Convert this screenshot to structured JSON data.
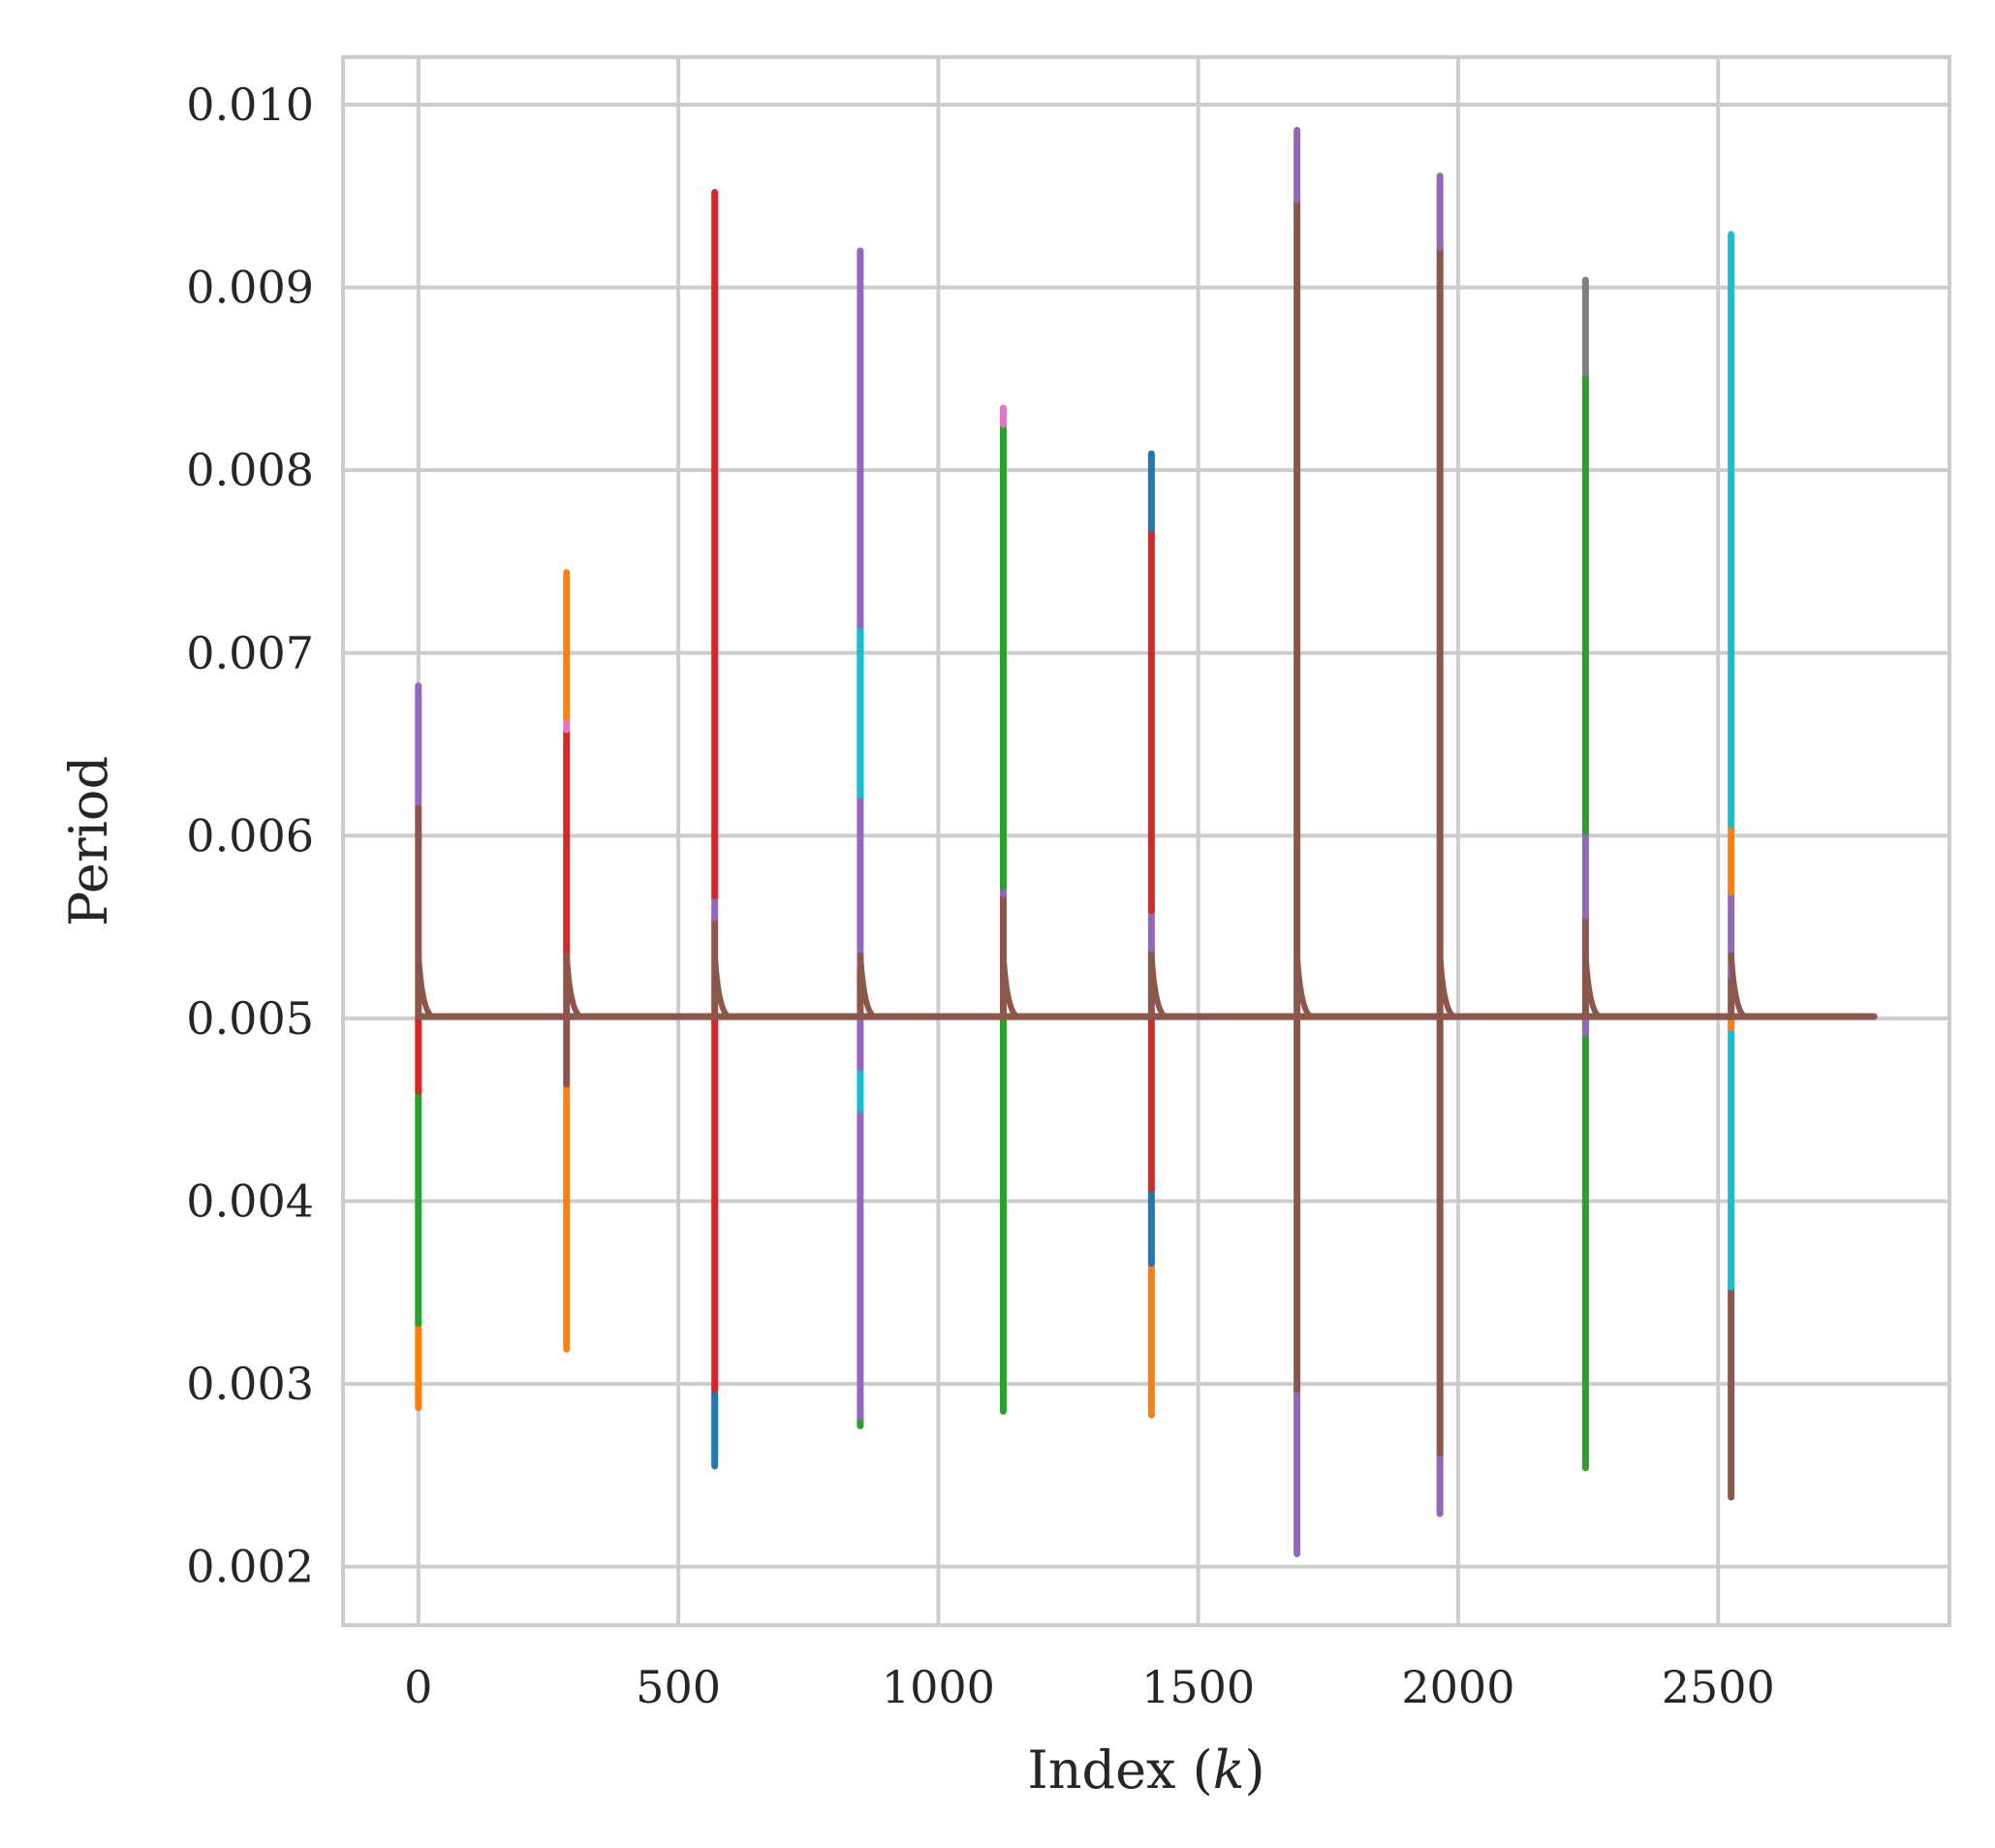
{
  "chart_data": {
    "type": "line",
    "xlabel": "Index (k)",
    "ylabel": "Period",
    "xlim": [
      -145,
      2945
    ],
    "ylim": [
      0.00168,
      0.01026
    ],
    "xticks": [
      0,
      500,
      1000,
      1500,
      2000,
      2500
    ],
    "xtick_labels": [
      "0",
      "500",
      "1000",
      "1500",
      "2000",
      "2500"
    ],
    "yticks": [
      0.002,
      0.003,
      0.004,
      0.005,
      0.006,
      0.007,
      0.008,
      0.009,
      0.01
    ],
    "ytick_labels": [
      "0.002",
      "0.003",
      "0.004",
      "0.005",
      "0.006",
      "0.007",
      "0.008",
      "0.009",
      "0.010"
    ],
    "grid": true,
    "baseline": 0.00501,
    "x_end": 2800,
    "spike_x": [
      0,
      285,
      570,
      850,
      1125,
      1410,
      1690,
      1965,
      2245,
      2525
    ],
    "colors": {
      "blue": "#1f77b4",
      "orange": "#ff7f0e",
      "green": "#2ca02c",
      "red": "#d62728",
      "purple": "#9467bd",
      "brown": "#8c564b",
      "pink": "#e377c2",
      "gray": "#7f7f7f",
      "cyan": "#17becf"
    },
    "spike_segments": [
      {
        "x": 0,
        "color": "orange",
        "range": [
          0.00287,
          0.00333
        ]
      },
      {
        "x": 0,
        "color": "green",
        "range": [
          0.00333,
          0.0046
        ]
      },
      {
        "x": 0,
        "color": "red",
        "range": [
          0.0046,
          0.00501
        ]
      },
      {
        "x": 0,
        "color": "purple",
        "range": [
          0.00615,
          0.00682
        ]
      },
      {
        "x": 0,
        "color": "brown",
        "range": [
          0.00501,
          0.00615
        ]
      },
      {
        "x": 285,
        "color": "orange",
        "range": [
          0.00319,
          0.00464
        ]
      },
      {
        "x": 285,
        "color": "brown",
        "range": [
          0.00464,
          0.00532
        ]
      },
      {
        "x": 285,
        "color": "red",
        "range": [
          0.00532,
          0.00658
        ]
      },
      {
        "x": 285,
        "color": "pink",
        "range": [
          0.00658,
          0.00665
        ]
      },
      {
        "x": 285,
        "color": "orange",
        "range": [
          0.00665,
          0.00744
        ]
      },
      {
        "x": 570,
        "color": "blue",
        "range": [
          0.00255,
          0.00297
        ]
      },
      {
        "x": 570,
        "color": "red",
        "range": [
          0.00297,
          0.00501
        ]
      },
      {
        "x": 570,
        "color": "brown",
        "range": [
          0.00501,
          0.00555
        ]
      },
      {
        "x": 570,
        "color": "purple",
        "range": [
          0.00555,
          0.00567
        ]
      },
      {
        "x": 570,
        "color": "red",
        "range": [
          0.00567,
          0.00952
        ]
      },
      {
        "x": 850,
        "color": "green",
        "range": [
          0.00277,
          0.00282
        ]
      },
      {
        "x": 850,
        "color": "purple",
        "range": [
          0.00282,
          0.0045
        ]
      },
      {
        "x": 850,
        "color": "cyan",
        "range": [
          0.0045,
          0.00473
        ]
      },
      {
        "x": 850,
        "color": "purple",
        "range": [
          0.00473,
          0.00501
        ]
      },
      {
        "x": 850,
        "color": "brown",
        "range": [
          0.00501,
          0.00529
        ]
      },
      {
        "x": 850,
        "color": "purple",
        "range": [
          0.00529,
          0.00622
        ]
      },
      {
        "x": 850,
        "color": "purple",
        "range": [
          0.00622,
          0.00715
        ]
      },
      {
        "x": 850,
        "color": "cyan",
        "range": [
          0.00622,
          0.00715
        ]
      },
      {
        "x": 850,
        "color": "purple",
        "range": [
          0.00715,
          0.0092
        ]
      },
      {
        "x": 1125,
        "color": "green",
        "range": [
          0.00285,
          0.00501
        ]
      },
      {
        "x": 1125,
        "color": "brown",
        "range": [
          0.00501,
          0.00568
        ]
      },
      {
        "x": 1125,
        "color": "purple",
        "range": [
          0.00568,
          0.00572
        ]
      },
      {
        "x": 1125,
        "color": "green",
        "range": [
          0.00572,
          0.00825
        ]
      },
      {
        "x": 1125,
        "color": "pink",
        "range": [
          0.00825,
          0.00834
        ]
      },
      {
        "x": 1410,
        "color": "orange",
        "range": [
          0.00283,
          0.00366
        ]
      },
      {
        "x": 1410,
        "color": "blue",
        "range": [
          0.00366,
          0.00407
        ]
      },
      {
        "x": 1410,
        "color": "red",
        "range": [
          0.00407,
          0.00501
        ]
      },
      {
        "x": 1410,
        "color": "brown",
        "range": [
          0.00501,
          0.00538
        ]
      },
      {
        "x": 1410,
        "color": "purple",
        "range": [
          0.00538,
          0.00559
        ]
      },
      {
        "x": 1410,
        "color": "red",
        "range": [
          0.00559,
          0.00768
        ]
      },
      {
        "x": 1410,
        "color": "blue",
        "range": [
          0.00768,
          0.00809
        ]
      },
      {
        "x": 1690,
        "color": "purple",
        "range": [
          0.00207,
          0.00297
        ]
      },
      {
        "x": 1690,
        "color": "brown",
        "range": [
          0.00297,
          0.00948
        ]
      },
      {
        "x": 1690,
        "color": "purple",
        "range": [
          0.00948,
          0.00986
        ]
      },
      {
        "x": 1965,
        "color": "purple",
        "range": [
          0.00229,
          0.00262
        ]
      },
      {
        "x": 1965,
        "color": "brown",
        "range": [
          0.00262,
          0.00922
        ]
      },
      {
        "x": 1965,
        "color": "purple",
        "range": [
          0.00922,
          0.00961
        ]
      },
      {
        "x": 2245,
        "color": "green",
        "range": [
          0.00254,
          0.00501
        ]
      },
      {
        "x": 2245,
        "color": "purple",
        "range": [
          0.00492,
          0.00501
        ]
      },
      {
        "x": 2245,
        "color": "brown",
        "range": [
          0.00501,
          0.00556
        ]
      },
      {
        "x": 2245,
        "color": "purple",
        "range": [
          0.00556,
          0.00602
        ]
      },
      {
        "x": 2245,
        "color": "green",
        "range": [
          0.00602,
          0.00853
        ]
      },
      {
        "x": 2245,
        "color": "gray",
        "range": [
          0.00853,
          0.00904
        ]
      },
      {
        "x": 2525,
        "color": "brown",
        "range": [
          0.00238,
          0.00353
        ]
      },
      {
        "x": 2525,
        "color": "cyan",
        "range": [
          0.00353,
          0.00501
        ]
      },
      {
        "x": 2525,
        "color": "orange",
        "range": [
          0.00495,
          0.00501
        ]
      },
      {
        "x": 2525,
        "color": "brown",
        "range": [
          0.00501,
          0.00523
        ]
      },
      {
        "x": 2525,
        "color": "purple",
        "range": [
          0.00523,
          0.00569
        ]
      },
      {
        "x": 2525,
        "color": "orange",
        "range": [
          0.00569,
          0.00606
        ]
      },
      {
        "x": 2525,
        "color": "cyan",
        "range": [
          0.00606,
          0.00929
        ]
      }
    ]
  }
}
